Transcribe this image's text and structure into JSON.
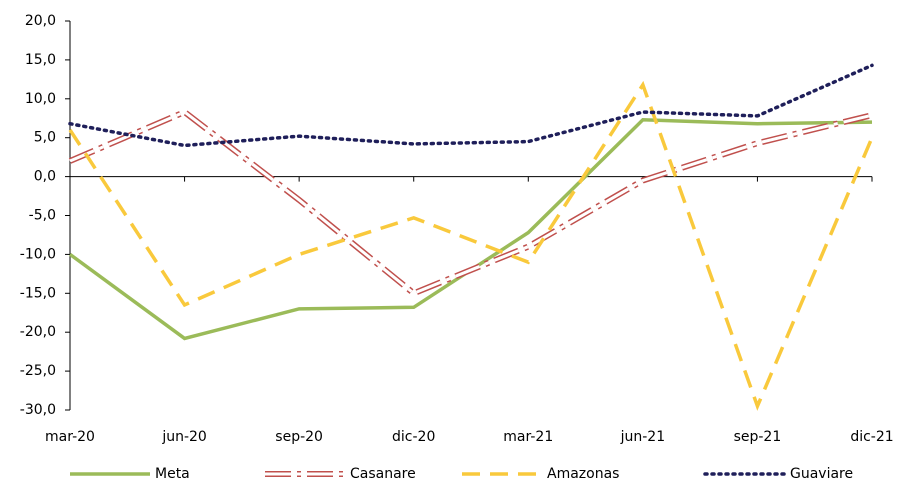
{
  "chart_data": {
    "type": "line",
    "categories": [
      "mar-20",
      "jun-20",
      "sep-20",
      "dic-20",
      "mar-21",
      "jun-21",
      "sep-21",
      "dic-21"
    ],
    "series": [
      {
        "name": "Meta",
        "color": "#9bbb59",
        "values": [
          -10,
          -20.8,
          -17,
          -16.8,
          -7.2,
          7.3,
          6.8,
          7.0
        ]
      },
      {
        "name": "Casanare",
        "color": "#c0504d",
        "values": [
          2.0,
          8.3,
          -3,
          -15,
          -9,
          -0.5,
          4.3,
          7.9
        ]
      },
      {
        "name": "Amazonas",
        "color": "#f9c93c",
        "values": [
          6,
          -16.5,
          -10,
          -5.3,
          -11,
          11.8,
          -29.5,
          5
        ]
      },
      {
        "name": "Guaviare",
        "color": "#1f1f5a",
        "values": [
          6.8,
          4.0,
          5.2,
          4.2,
          4.5,
          8.3,
          7.8,
          14.3
        ]
      }
    ],
    "ylim": [
      -30,
      20
    ],
    "yticks": [
      {
        "value": -30,
        "label": "-30,0"
      },
      {
        "value": -25,
        "label": "-25,0"
      },
      {
        "value": -20,
        "label": "-20,0"
      },
      {
        "value": -15,
        "label": "-15,0"
      },
      {
        "value": -10,
        "label": "-10,0"
      },
      {
        "value": -5,
        "label": "-5,0"
      },
      {
        "value": 0,
        "label": "0,0"
      },
      {
        "value": 5,
        "label": "5,0"
      },
      {
        "value": 10,
        "label": "10,0"
      },
      {
        "value": 15,
        "label": "15,0"
      },
      {
        "value": 20,
        "label": "20,0"
      }
    ],
    "legend": "bottom"
  }
}
